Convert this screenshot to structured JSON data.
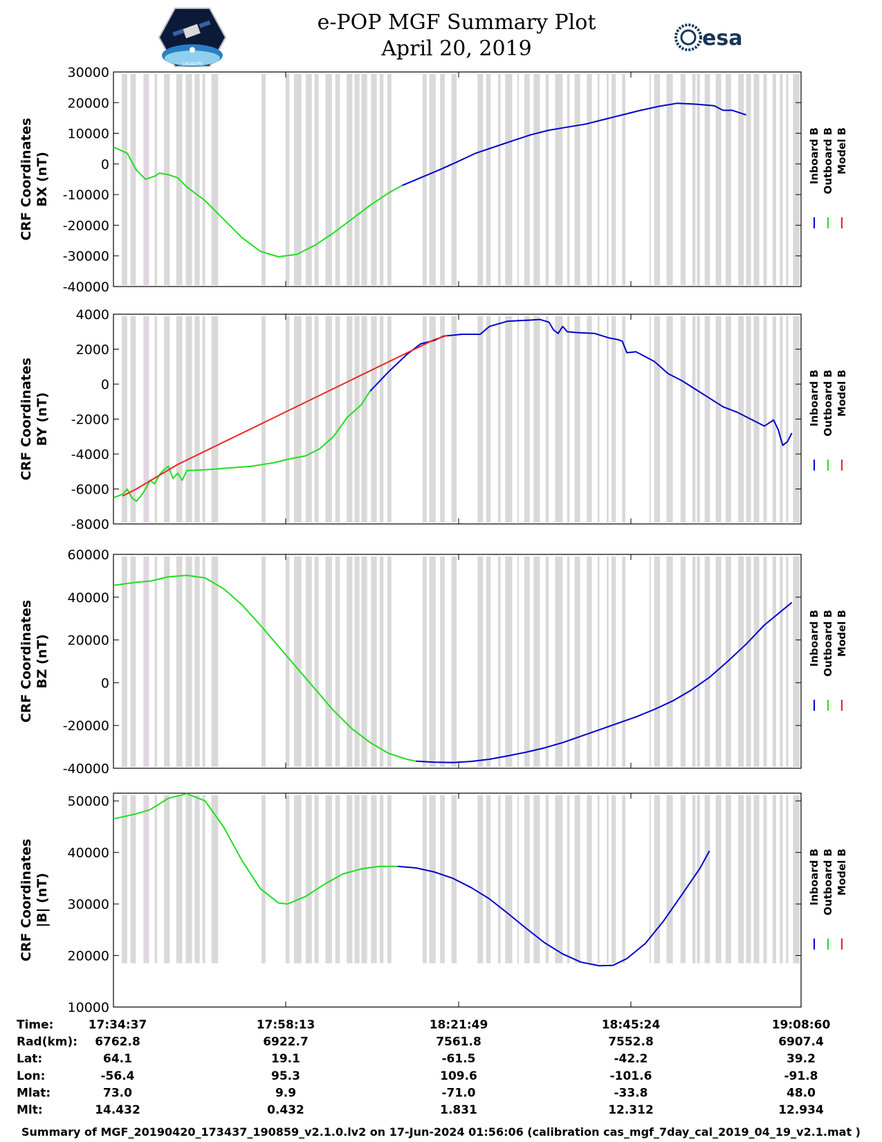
{
  "header": {
    "title_line1": "e-POP MGF Summary Plot",
    "title_line2": "April 20, 2019",
    "esa_logo_text": "esa",
    "cassiope_logo_text": "CASSIOPE"
  },
  "colors": {
    "inboard": "#0000cc",
    "outboard": "#22dd22",
    "model": "#ee2222",
    "gap_band": "#d9d9d9",
    "gap_band_pink": "#e2d6e0"
  },
  "chart_data": [
    {
      "type": "line",
      "ylabel_line1": "CRF Coordinates",
      "ylabel_line2": "BX (nT)",
      "ylim": [
        -40000,
        30000
      ],
      "yticks": [
        30000,
        20000,
        10000,
        0,
        -10000,
        -20000,
        -30000,
        -40000
      ],
      "ytick_labels": [
        "30000",
        "20000",
        "10000",
        "0",
        "-10000",
        "-20000",
        "-30000",
        "-40000"
      ],
      "legend": [
        "Inboard B",
        "Outboard B",
        "Model B"
      ],
      "series": [
        {
          "name": "Outboard B",
          "color_key": "outboard",
          "points": [
            [
              0,
              5500
            ],
            [
              0.03,
              3500
            ],
            [
              0.05,
              -2000
            ],
            [
              0.07,
              -5000
            ],
            [
              0.09,
              -4000
            ],
            [
              0.1,
              -3000
            ],
            [
              0.12,
              -3500
            ],
            [
              0.14,
              -4500
            ],
            [
              0.16,
              -7500
            ],
            [
              0.2,
              -12000
            ],
            [
              0.24,
              -18000
            ],
            [
              0.28,
              -24000
            ],
            [
              0.32,
              -28500
            ],
            [
              0.36,
              -30300
            ],
            [
              0.4,
              -29500
            ],
            [
              0.44,
              -26500
            ],
            [
              0.48,
              -22500
            ],
            [
              0.52,
              -18000
            ],
            [
              0.56,
              -13500
            ],
            [
              0.6,
              -9500
            ],
            [
              0.63,
              -7000
            ]
          ]
        },
        {
          "name": "Inboard B",
          "color_key": "inboard",
          "points": [
            [
              0.63,
              -7000
            ],
            [
              0.67,
              -4500
            ],
            [
              0.71,
              -2000
            ],
            [
              0.75,
              700
            ],
            [
              0.79,
              3500
            ],
            [
              0.83,
              5500
            ],
            [
              0.87,
              7500
            ],
            [
              0.91,
              9500
            ],
            [
              0.95,
              11000
            ],
            [
              0.99,
              12000
            ],
            [
              1.03,
              13000
            ],
            [
              1.07,
              14500
            ],
            [
              1.11,
              16000
            ],
            [
              1.15,
              17500
            ],
            [
              1.19,
              18800
            ],
            [
              1.23,
              19800
            ],
            [
              1.27,
              19500
            ],
            [
              1.31,
              19000
            ],
            [
              1.33,
              17500
            ],
            [
              1.35,
              17500
            ],
            [
              1.37,
              16500
            ],
            [
              1.38,
              16000
            ]
          ]
        }
      ]
    },
    {
      "type": "line",
      "ylabel_line1": "CRF Coordinates",
      "ylabel_line2": "BY (nT)",
      "ylim": [
        -8000,
        4000
      ],
      "yticks": [
        4000,
        2000,
        0,
        -2000,
        -4000,
        -6000,
        -8000
      ],
      "ytick_labels": [
        "4000",
        "2000",
        "0",
        "-2000",
        "-4000",
        "-6000",
        "-8000"
      ],
      "legend": [
        "Inboard B",
        "Outboard B",
        "Model B"
      ],
      "series": [
        {
          "name": "Outboard B",
          "color_key": "outboard",
          "points": [
            [
              0,
              -6500
            ],
            [
              0.02,
              -6300
            ],
            [
              0.03,
              -6000
            ],
            [
              0.04,
              -6500
            ],
            [
              0.05,
              -6700
            ],
            [
              0.06,
              -6400
            ],
            [
              0.07,
              -6000
            ],
            [
              0.08,
              -5500
            ],
            [
              0.09,
              -5700
            ],
            [
              0.1,
              -5200
            ],
            [
              0.11,
              -4900
            ],
            [
              0.12,
              -4700
            ],
            [
              0.13,
              -5400
            ],
            [
              0.14,
              -5100
            ],
            [
              0.15,
              -5500
            ],
            [
              0.16,
              -4950
            ],
            [
              0.2,
              -4900
            ],
            [
              0.25,
              -4800
            ],
            [
              0.3,
              -4700
            ],
            [
              0.35,
              -4500
            ],
            [
              0.38,
              -4300
            ],
            [
              0.42,
              -4100
            ],
            [
              0.45,
              -3700
            ],
            [
              0.48,
              -3000
            ],
            [
              0.51,
              -1900
            ],
            [
              0.54,
              -1200
            ],
            [
              0.56,
              -400
            ]
          ]
        },
        {
          "name": "Inboard B",
          "color_key": "inboard",
          "points": [
            [
              0.56,
              -400
            ],
            [
              0.6,
              700
            ],
            [
              0.64,
              1700
            ],
            [
              0.67,
              2300
            ],
            [
              0.7,
              2500
            ],
            [
              0.72,
              2750
            ],
            [
              0.76,
              2850
            ],
            [
              0.8,
              2850
            ],
            [
              0.82,
              3300
            ],
            [
              0.86,
              3600
            ],
            [
              0.9,
              3650
            ],
            [
              0.93,
              3700
            ],
            [
              0.95,
              3550
            ],
            [
              0.96,
              3100
            ],
            [
              0.97,
              2900
            ],
            [
              0.98,
              3300
            ],
            [
              0.99,
              3000
            ],
            [
              1.01,
              2950
            ],
            [
              1.05,
              2900
            ],
            [
              1.08,
              2650
            ],
            [
              1.1,
              2550
            ],
            [
              1.11,
              2450
            ],
            [
              1.12,
              1800
            ],
            [
              1.14,
              1850
            ],
            [
              1.18,
              1300
            ],
            [
              1.21,
              600
            ],
            [
              1.24,
              200
            ],
            [
              1.27,
              -300
            ],
            [
              1.3,
              -800
            ],
            [
              1.33,
              -1300
            ],
            [
              1.36,
              -1600
            ],
            [
              1.39,
              -2000
            ],
            [
              1.42,
              -2400
            ],
            [
              1.44,
              -2050
            ],
            [
              1.45,
              -2600
            ],
            [
              1.46,
              -3500
            ],
            [
              1.47,
              -3300
            ],
            [
              1.48,
              -2800
            ]
          ]
        },
        {
          "name": "Model B",
          "color_key": "model",
          "points": [
            [
              0.02,
              -6400
            ],
            [
              0.05,
              -6000
            ],
            [
              0.14,
              -4600
            ],
            [
              0.7,
              2550
            ],
            [
              0.73,
              2800
            ]
          ]
        }
      ]
    },
    {
      "type": "line",
      "ylabel_line1": "CRF Coordinates",
      "ylabel_line2": "BZ (nT)",
      "ylim": [
        -40000,
        60000
      ],
      "yticks": [
        60000,
        40000,
        20000,
        0,
        -20000,
        -40000
      ],
      "ytick_labels": [
        "60000",
        "40000",
        "20000",
        "0",
        "-20000",
        "-40000"
      ],
      "legend": [
        "Inboard B",
        "Outboard B",
        "Model B"
      ],
      "series": [
        {
          "name": "Outboard B",
          "color_key": "outboard",
          "points": [
            [
              0,
              45500
            ],
            [
              0.05,
              47000
            ],
            [
              0.08,
              47500
            ],
            [
              0.12,
              49500
            ],
            [
              0.16,
              50200
            ],
            [
              0.2,
              49000
            ],
            [
              0.24,
              44000
            ],
            [
              0.28,
              36500
            ],
            [
              0.32,
              27000
            ],
            [
              0.36,
              17000
            ],
            [
              0.4,
              7000
            ],
            [
              0.44,
              -3000
            ],
            [
              0.48,
              -13000
            ],
            [
              0.52,
              -21500
            ],
            [
              0.56,
              -28000
            ],
            [
              0.6,
              -33000
            ],
            [
              0.64,
              -35800
            ],
            [
              0.66,
              -36700
            ]
          ]
        },
        {
          "name": "Inboard B",
          "color_key": "inboard",
          "points": [
            [
              0.66,
              -36700
            ],
            [
              0.7,
              -37200
            ],
            [
              0.74,
              -37300
            ],
            [
              0.78,
              -36800
            ],
            [
              0.82,
              -35800
            ],
            [
              0.86,
              -34200
            ],
            [
              0.9,
              -32500
            ],
            [
              0.94,
              -30500
            ],
            [
              0.98,
              -28000
            ],
            [
              1.02,
              -25000
            ],
            [
              1.06,
              -22000
            ],
            [
              1.1,
              -19000
            ],
            [
              1.14,
              -16000
            ],
            [
              1.18,
              -12500
            ],
            [
              1.22,
              -8500
            ],
            [
              1.26,
              -3500
            ],
            [
              1.3,
              2500
            ],
            [
              1.34,
              10000
            ],
            [
              1.38,
              18000
            ],
            [
              1.42,
              27000
            ],
            [
              1.46,
              34000
            ],
            [
              1.48,
              37500
            ]
          ]
        }
      ]
    },
    {
      "type": "line",
      "ylabel_line1": "CRF Coordinates",
      "ylabel_line2": "|B| (nT)",
      "ylim": [
        10000,
        51500
      ],
      "yticks": [
        50000,
        40000,
        30000,
        20000,
        10000
      ],
      "ytick_labels": [
        "50000",
        "40000",
        "30000",
        "20000",
        "10000"
      ],
      "legend": [
        "Inboard B",
        "Outboard B",
        "Model B"
      ],
      "series": [
        {
          "name": "Outboard B",
          "color_key": "outboard",
          "points": [
            [
              0,
              46500
            ],
            [
              0.05,
              47500
            ],
            [
              0.08,
              48300
            ],
            [
              0.12,
              50500
            ],
            [
              0.16,
              51400
            ],
            [
              0.2,
              50000
            ],
            [
              0.24,
              45000
            ],
            [
              0.28,
              38500
            ],
            [
              0.32,
              33000
            ],
            [
              0.36,
              30200
            ],
            [
              0.38,
              30000
            ],
            [
              0.42,
              31500
            ],
            [
              0.46,
              33800
            ],
            [
              0.5,
              35800
            ],
            [
              0.54,
              36800
            ],
            [
              0.58,
              37300
            ],
            [
              0.62,
              37300
            ]
          ]
        },
        {
          "name": "Inboard B",
          "color_key": "inboard",
          "points": [
            [
              0.62,
              37300
            ],
            [
              0.66,
              37000
            ],
            [
              0.7,
              36200
            ],
            [
              0.74,
              35000
            ],
            [
              0.78,
              33200
            ],
            [
              0.82,
              31000
            ],
            [
              0.86,
              28200
            ],
            [
              0.9,
              25300
            ],
            [
              0.94,
              22500
            ],
            [
              0.98,
              20300
            ],
            [
              1.02,
              18700
            ],
            [
              1.06,
              18000
            ],
            [
              1.09,
              18100
            ],
            [
              1.12,
              19400
            ],
            [
              1.16,
              22300
            ],
            [
              1.2,
              26700
            ],
            [
              1.24,
              31800
            ],
            [
              1.28,
              37000
            ],
            [
              1.3,
              40300
            ]
          ]
        }
      ]
    }
  ],
  "x_axis": {
    "tick_labels": [
      "17:34:37",
      "17:58:13",
      "18:21:49",
      "18:45:24",
      "19:08:60"
    ],
    "rows": [
      {
        "label": "Time:",
        "values": [
          "17:34:37",
          "17:58:13",
          "18:21:49",
          "18:45:24",
          "19:08:60"
        ]
      },
      {
        "label": "Rad(km):",
        "values": [
          "6762.8",
          "6922.7",
          "7561.8",
          "7552.8",
          "6907.4"
        ]
      },
      {
        "label": "Lat:",
        "values": [
          "64.1",
          "19.1",
          "-61.5",
          "-42.2",
          "39.2"
        ]
      },
      {
        "label": "Lon:",
        "values": [
          "-56.4",
          "95.3",
          "109.6",
          "-101.6",
          "-91.8"
        ]
      },
      {
        "label": "Mlat:",
        "values": [
          "73.0",
          "9.9",
          "-71.0",
          "-33.8",
          "48.0"
        ]
      },
      {
        "label": "Mlt:",
        "values": [
          "14.432",
          "0.432",
          "1.831",
          "12.312",
          "12.934"
        ]
      }
    ]
  },
  "footer": {
    "text": "Summary of MGF_20190420_173437_190859_v2.1.0.lv2 on 17-Jun-2024 01:56:06 (calibration cas_mgf_7day_cal_2019_04_19_v2.1.mat )"
  }
}
